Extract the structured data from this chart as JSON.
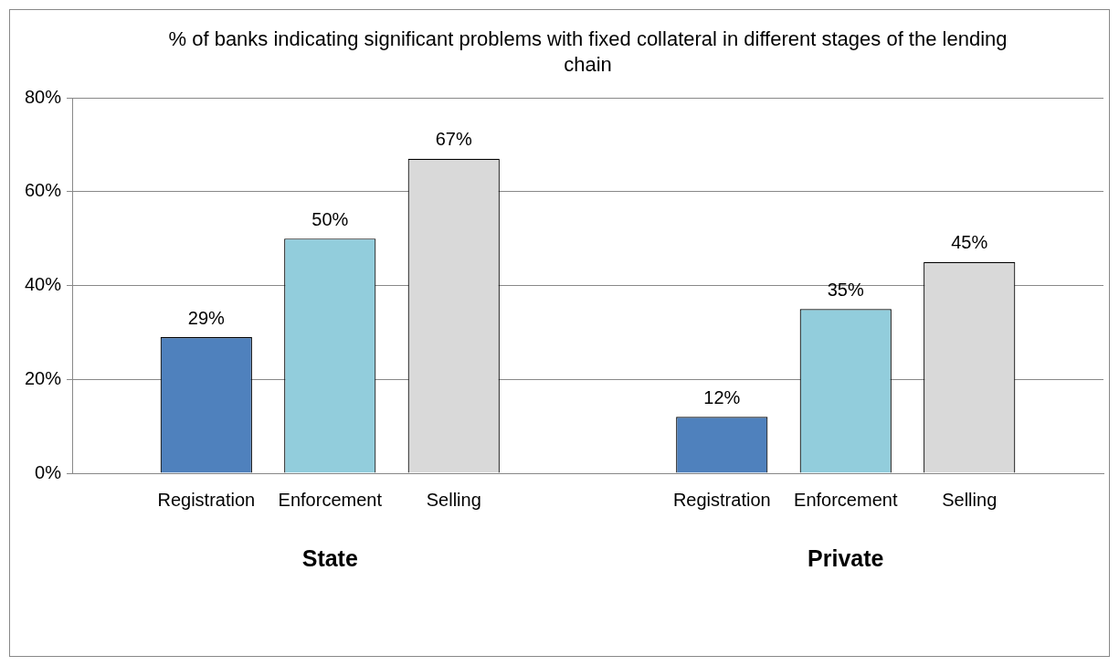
{
  "chart_data": {
    "type": "bar",
    "title": "% of banks indicating significant problems with fixed collateral in different stages of the lending chain",
    "categories": [
      "State",
      "Private"
    ],
    "series": [
      {
        "name": "Registration",
        "color": "#4f81bd",
        "values": [
          29,
          12
        ],
        "value_labels": [
          "29%",
          "12%"
        ]
      },
      {
        "name": "Enforcement",
        "color": "#92cddc",
        "values": [
          50,
          35
        ],
        "value_labels": [
          "50%",
          "35%"
        ]
      },
      {
        "name": "Selling",
        "color": "#d9d9d9",
        "values": [
          67,
          45
        ],
        "value_labels": [
          "67%",
          "45%"
        ]
      }
    ],
    "ylim": [
      0,
      80
    ],
    "yticks": [
      {
        "value": 0,
        "label": "0%"
      },
      {
        "value": 20,
        "label": "20%"
      },
      {
        "value": 40,
        "label": "40%"
      },
      {
        "value": 60,
        "label": "60%"
      },
      {
        "value": 80,
        "label": "80%"
      }
    ],
    "grid": "y",
    "legend": false
  }
}
